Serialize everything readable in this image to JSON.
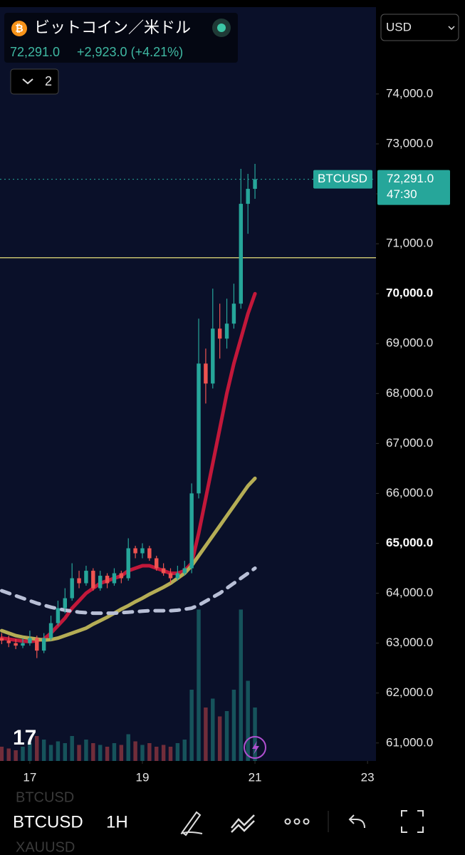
{
  "header": {
    "title": "ビットコイン／米ドル",
    "price": "72,291.0",
    "change": "+2,923.0 (+4.21%)",
    "indicator_count": "2",
    "currency": "USD"
  },
  "chart_data": {
    "type": "candlestick",
    "x": [
      16.5,
      16.625,
      16.75,
      16.875,
      17,
      17.125,
      17.25,
      17.375,
      17.5,
      17.625,
      17.75,
      17.875,
      18,
      18.125,
      18.25,
      18.375,
      18.5,
      18.625,
      18.75,
      18.875,
      19,
      19.125,
      19.25,
      19.375,
      19.5,
      19.625,
      19.75,
      19.875,
      20,
      20.125,
      20.25,
      20.375,
      20.5,
      20.625,
      20.75,
      20.875,
      21
    ],
    "open": [
      63100,
      63050,
      63000,
      62950,
      63000,
      63100,
      62850,
      63100,
      63400,
      63700,
      63900,
      64300,
      64200,
      64450,
      64100,
      64350,
      64200,
      64400,
      64300,
      64900,
      64800,
      64900,
      64700,
      64500,
      64400,
      64300,
      64400,
      64500,
      66000,
      68600,
      68200,
      69300,
      69100,
      69400,
      69800,
      71800,
      72100
    ],
    "high": [
      63200,
      63150,
      63080,
      63100,
      63250,
      63150,
      63200,
      63550,
      63850,
      64100,
      64600,
      64450,
      64550,
      64500,
      64450,
      64400,
      64500,
      64450,
      65100,
      64950,
      65000,
      64950,
      64750,
      64600,
      64500,
      64550,
      64650,
      66200,
      69500,
      68900,
      70100,
      69800,
      69900,
      70200,
      72500,
      72400,
      72600
    ],
    "low": [
      62980,
      62920,
      62880,
      62900,
      62950,
      62700,
      62800,
      63050,
      63350,
      63600,
      63850,
      64100,
      64150,
      64050,
      64050,
      64100,
      64150,
      64200,
      64250,
      64700,
      64700,
      64650,
      64450,
      64350,
      64200,
      64250,
      64350,
      64400,
      65900,
      67800,
      68100,
      68700,
      68900,
      69300,
      69700,
      71200,
      71900
    ],
    "close": [
      63050,
      63000,
      62950,
      63000,
      63100,
      62850,
      63100,
      63400,
      63700,
      63900,
      64300,
      64200,
      64450,
      64100,
      64350,
      64200,
      64400,
      64300,
      64900,
      64800,
      64900,
      64700,
      64500,
      64400,
      64300,
      64400,
      64500,
      66000,
      68600,
      68200,
      69300,
      69100,
      69400,
      69800,
      71800,
      72100,
      72291
    ],
    "volume": [
      8,
      7,
      6,
      8,
      10,
      14,
      12,
      9,
      11,
      10,
      14,
      9,
      12,
      10,
      9,
      8,
      10,
      9,
      15,
      11,
      9,
      10,
      8,
      9,
      8,
      10,
      12,
      40,
      85,
      30,
      35,
      25,
      28,
      40,
      85,
      45,
      30
    ],
    "volume_ylim": [
      0,
      100
    ],
    "up_color": "#26a69a",
    "down_color": "#ef5350",
    "moving_averages": [
      {
        "color": "#c2183a",
        "dashed": false,
        "values": [
          63100,
          63080,
          63060,
          63040,
          63030,
          63050,
          63080,
          63200,
          63350,
          63500,
          63700,
          63850,
          64000,
          64100,
          64200,
          64250,
          64300,
          64350,
          64450,
          64500,
          64550,
          64550,
          64500,
          64450,
          64400,
          64400,
          64450,
          64600,
          65200,
          65900,
          66600,
          67300,
          68000,
          68600,
          69100,
          69600,
          70000
        ]
      },
      {
        "color": "#b5ad55",
        "dashed": false,
        "values": [
          63250,
          63200,
          63150,
          63120,
          63100,
          63080,
          63060,
          63070,
          63100,
          63150,
          63200,
          63250,
          63300,
          63380,
          63450,
          63520,
          63600,
          63680,
          63750,
          63830,
          63900,
          63980,
          64050,
          64120,
          64200,
          64300,
          64400,
          64550,
          64750,
          64950,
          65150,
          65350,
          65550,
          65750,
          65950,
          66150,
          66300
        ]
      },
      {
        "color": "#b8bfd6",
        "dashed": true,
        "values": [
          64050,
          64000,
          63950,
          63900,
          63850,
          63800,
          63760,
          63720,
          63690,
          63660,
          63640,
          63620,
          63610,
          63600,
          63600,
          63600,
          63600,
          63610,
          63620,
          63630,
          63640,
          63650,
          63650,
          63650,
          63650,
          63660,
          63680,
          63700,
          63760,
          63840,
          63920,
          64000,
          64100,
          64200,
          64300,
          64400,
          64500
        ]
      }
    ],
    "hline": {
      "value": 70720,
      "color": "#e8e07a"
    },
    "last_price": {
      "symbol": "BTCUSD",
      "value": 72291,
      "label": "72,291.0",
      "countdown": "47:30"
    },
    "xlim": [
      16.47,
      23.15
    ],
    "xticks": [
      17,
      19,
      21,
      23
    ],
    "ylim": [
      60640,
      75740
    ],
    "yticks": [
      {
        "value": 74000,
        "label": "74,000.0"
      },
      {
        "value": 73000,
        "label": "73,000.0"
      },
      {
        "value": 72000,
        "label": "72,000.0"
      },
      {
        "value": 71000,
        "label": "71,000.0"
      },
      {
        "value": 70000,
        "label": "70,000.0",
        "bold": true
      },
      {
        "value": 69000,
        "label": "69,000.0"
      },
      {
        "value": 68000,
        "label": "68,000.0"
      },
      {
        "value": 67000,
        "label": "67,000.0"
      },
      {
        "value": 66000,
        "label": "66,000.0"
      },
      {
        "value": 65000,
        "label": "65,000.0",
        "bold": true
      },
      {
        "value": 64000,
        "label": "64,000.0"
      },
      {
        "value": 63000,
        "label": "63,000.0"
      },
      {
        "value": 62000,
        "label": "62,000.0"
      },
      {
        "value": 61000,
        "label": "61,000.0"
      }
    ]
  },
  "toolbar": {
    "symbol": "BTCUSD",
    "interval": "1H",
    "watchlist": [
      "BTCUSD",
      "XAUUSD"
    ]
  }
}
